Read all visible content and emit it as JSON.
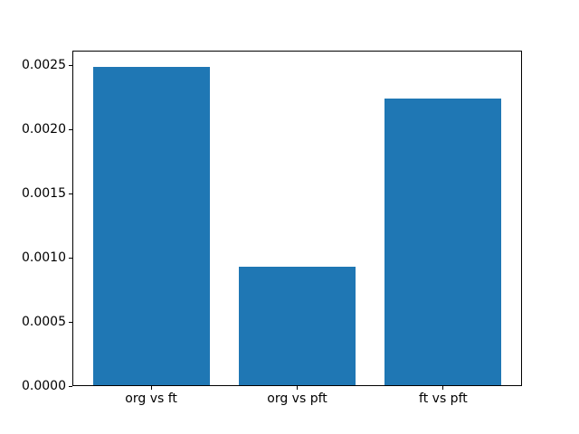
{
  "figure": {
    "background": "#ffffff",
    "frame_color": "#000000",
    "text_color": "#000000"
  },
  "chart_data": {
    "type": "bar",
    "title": "",
    "xlabel": "",
    "ylabel": "",
    "categories": [
      "org vs ft",
      "org vs pft",
      "ft vs pft"
    ],
    "values": [
      0.00249,
      0.00093,
      0.00224
    ],
    "bar_color": "#1f77b4",
    "bar_width_fraction": 0.8,
    "xlim": [
      -0.54,
      2.54
    ],
    "ylim": [
      0,
      0.002614
    ],
    "yticks": [
      0.0,
      0.0005,
      0.001,
      0.0015,
      0.002,
      0.0025
    ],
    "ytick_labels": [
      "0.0000",
      "0.0005",
      "0.0010",
      "0.0015",
      "0.0020",
      "0.0025"
    ],
    "grid": false,
    "legend": null
  }
}
